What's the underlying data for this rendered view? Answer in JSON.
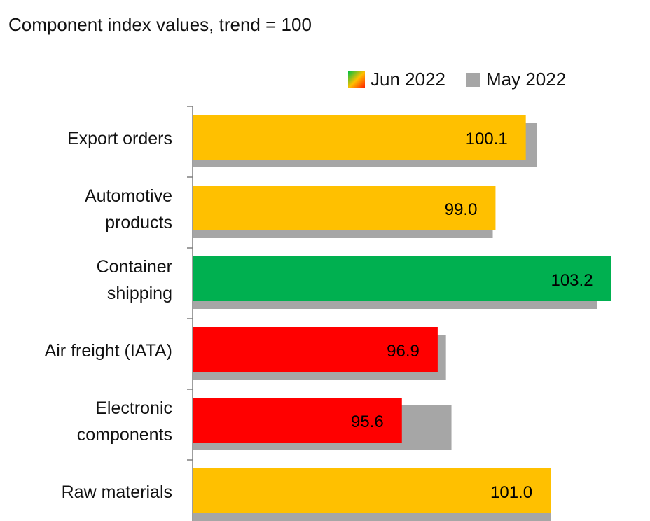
{
  "chart_data": {
    "type": "bar",
    "orientation": "horizontal",
    "title": "Component index values, trend = 100",
    "xlabel": "",
    "ylabel": "",
    "xlim": [
      88,
      104
    ],
    "legend_position": "top-right",
    "grid": false,
    "categories": [
      [
        "Export orders"
      ],
      [
        "Automotive",
        "products"
      ],
      [
        "Container",
        "shipping"
      ],
      [
        "Air freight (IATA)"
      ],
      [
        "Electronic",
        "components"
      ],
      [
        "Raw materials"
      ]
    ],
    "series": [
      {
        "name": "Jun 2022",
        "values": [
          100.1,
          99.0,
          103.2,
          96.9,
          95.6,
          101.0
        ],
        "value_labels": [
          "100.1",
          "99.0",
          "103.2",
          "96.9",
          "95.6",
          "101.0"
        ],
        "colors": [
          "#ffc000",
          "#ffc000",
          "#00b050",
          "#ff0000",
          "#ff0000",
          "#ffc000"
        ]
      },
      {
        "name": "May 2022",
        "values": [
          100.5,
          98.9,
          102.7,
          97.2,
          97.4,
          101.0
        ],
        "color": "#a6a6a6"
      }
    ]
  }
}
